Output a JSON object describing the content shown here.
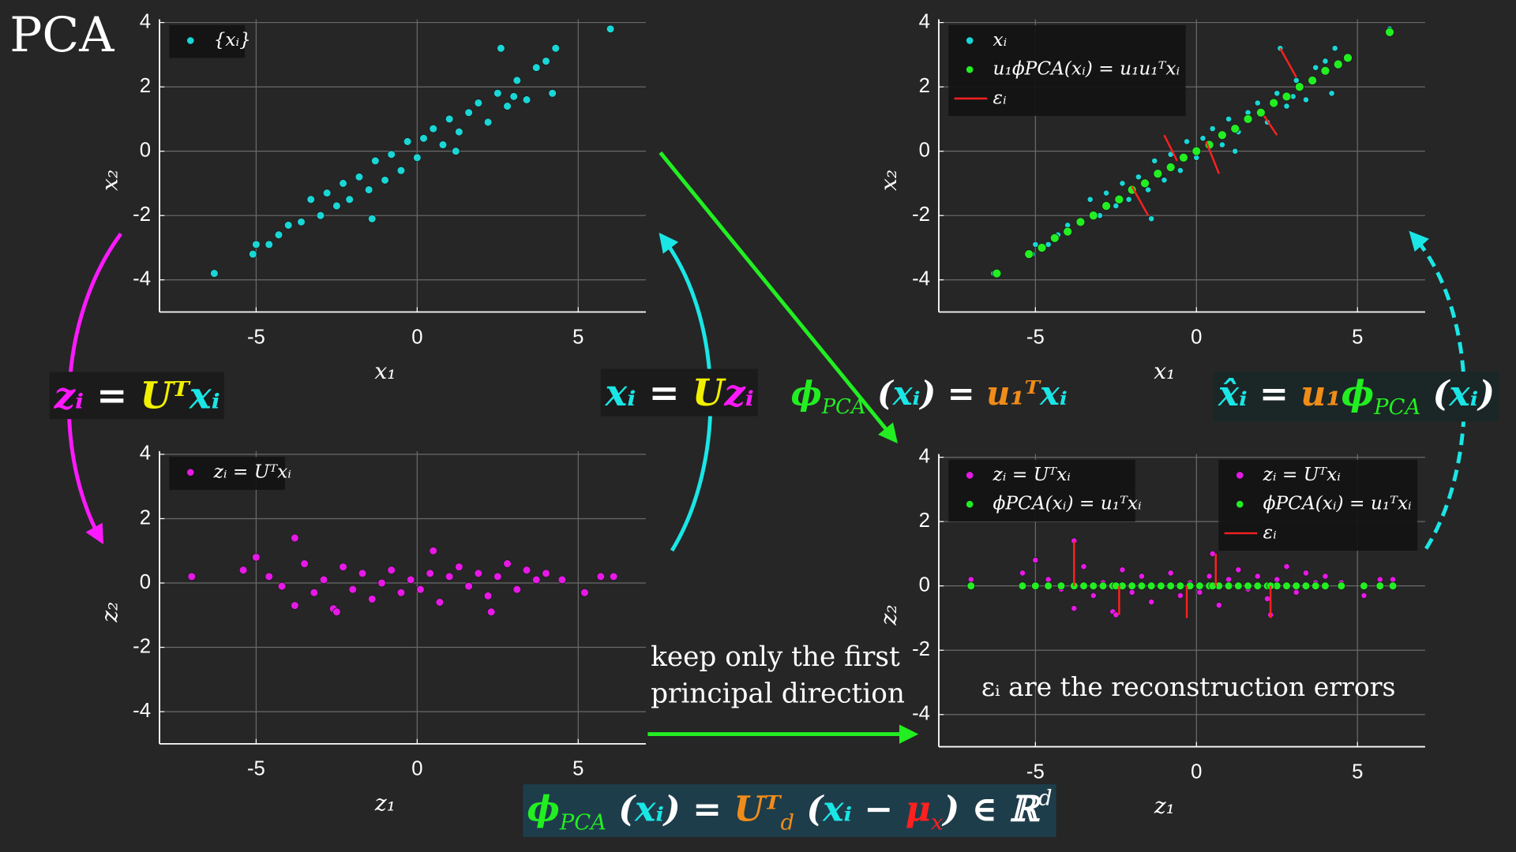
{
  "title": "PCA",
  "chart_data": [
    {
      "type": "scatter",
      "xlabel": "x₁",
      "ylabel": "x₂",
      "xlim": [
        -8,
        7.1
      ],
      "ylim": [
        -5,
        4.1
      ],
      "xticks": [
        -5,
        0,
        5
      ],
      "yticks": [
        -4,
        -2,
        0,
        2,
        4
      ],
      "grid": true,
      "legends": [
        {
          "loc": "upper left",
          "entries": [
            0
          ]
        }
      ],
      "series": [
        {
          "name": "{xᵢ}",
          "color": "#1ad6d6",
          "marker_size": 4,
          "x": [
            -6.3,
            -5.1,
            -5.0,
            -4.6,
            -4.3,
            -4.0,
            -3.6,
            -3.3,
            -3.0,
            -2.8,
            -2.5,
            -2.3,
            -2.1,
            -1.8,
            -1.5,
            -1.3,
            -1.0,
            -0.8,
            -0.5,
            -0.3,
            0.0,
            0.2,
            0.5,
            0.8,
            1.0,
            1.3,
            1.6,
            1.9,
            2.2,
            2.5,
            2.8,
            3.1,
            3.4,
            3.7,
            4.0,
            4.3,
            2.6,
            1.2,
            -1.4,
            6.0,
            4.2,
            3.0
          ],
          "values": [
            -3.8,
            -3.2,
            -2.9,
            -2.9,
            -2.6,
            -2.3,
            -2.2,
            -1.5,
            -2.0,
            -1.3,
            -1.7,
            -1.0,
            -1.5,
            -0.8,
            -1.2,
            -0.3,
            -0.9,
            -0.1,
            -0.6,
            0.3,
            -0.2,
            0.4,
            0.7,
            0.2,
            1.0,
            0.6,
            1.2,
            1.5,
            0.9,
            1.8,
            1.4,
            2.2,
            1.6,
            2.6,
            2.8,
            3.2,
            3.2,
            0.0,
            -2.1,
            3.8,
            1.8,
            1.7
          ]
        }
      ]
    },
    {
      "type": "scatter",
      "xlabel": "x₁",
      "ylabel": "x₂",
      "xlim": [
        -8,
        7.1
      ],
      "ylim": [
        -5,
        4.1
      ],
      "xticks": [
        -5,
        0,
        5
      ],
      "yticks": [
        -4,
        -2,
        0,
        2,
        4
      ],
      "grid": true,
      "legends": [
        {
          "loc": "upper left",
          "entries": [
            0,
            1,
            2
          ]
        }
      ],
      "series": [
        {
          "name": "xᵢ",
          "color": "#1ad6d6",
          "marker_size": 3,
          "x": [
            -6.3,
            -5.1,
            -5.0,
            -4.6,
            -4.3,
            -4.0,
            -3.6,
            -3.3,
            -3.0,
            -2.8,
            -2.5,
            -2.3,
            -2.1,
            -1.8,
            -1.5,
            -1.3,
            -1.0,
            -0.8,
            -0.5,
            -0.3,
            0.0,
            0.2,
            0.5,
            0.8,
            1.0,
            1.3,
            1.6,
            1.9,
            2.2,
            2.5,
            2.8,
            3.1,
            3.4,
            3.7,
            4.0,
            4.3,
            2.6,
            1.2,
            -1.4,
            6.0,
            4.2,
            3.0
          ],
          "values": [
            -3.8,
            -3.2,
            -2.9,
            -2.9,
            -2.6,
            -2.3,
            -2.2,
            -1.5,
            -2.0,
            -1.3,
            -1.7,
            -1.0,
            -1.5,
            -0.8,
            -1.2,
            -0.3,
            -0.9,
            -0.1,
            -0.6,
            0.3,
            -0.2,
            0.4,
            0.7,
            0.2,
            1.0,
            0.6,
            1.2,
            1.5,
            0.9,
            1.8,
            1.4,
            2.2,
            1.6,
            2.6,
            2.8,
            3.2,
            3.2,
            0.0,
            -2.1,
            3.8,
            1.8,
            1.7
          ]
        },
        {
          "name": "u₁ϕPCA(xᵢ) = u₁u₁ᵀxᵢ",
          "color": "#22ee22",
          "marker_size": 4.5,
          "x": [
            -6.2,
            -5.2,
            -4.8,
            -4.4,
            -4.0,
            -3.6,
            -3.2,
            -2.8,
            -2.4,
            -2.0,
            -1.6,
            -1.2,
            -0.8,
            -0.4,
            0.0,
            0.4,
            0.8,
            1.2,
            1.6,
            2.0,
            2.4,
            2.8,
            3.2,
            3.6,
            4.0,
            4.4,
            4.7,
            6.0
          ],
          "values": [
            -3.8,
            -3.2,
            -3.0,
            -2.7,
            -2.5,
            -2.2,
            -2.0,
            -1.7,
            -1.5,
            -1.2,
            -1.0,
            -0.7,
            -0.5,
            -0.2,
            0.0,
            0.2,
            0.5,
            0.7,
            1.0,
            1.2,
            1.5,
            1.7,
            2.0,
            2.2,
            2.5,
            2.7,
            2.9,
            3.7
          ]
        },
        {
          "name": "εᵢ",
          "color": "#ff2020",
          "marker": "line",
          "x": [
            2.6,
            2.1,
            -1.0,
            0.3,
            -2.0
          ],
          "values": [
            3.2,
            1.1,
            0.5,
            0.3,
            -1.1
          ],
          "x2": [
            3.1,
            2.5,
            -0.6,
            0.7,
            -1.5
          ],
          "values2": [
            2.3,
            0.5,
            -0.3,
            -0.7,
            -2.0
          ]
        }
      ]
    },
    {
      "type": "scatter",
      "xlabel": "z₁",
      "ylabel": "z₂",
      "xlim": [
        -8,
        7.1
      ],
      "ylim": [
        -5,
        4.1
      ],
      "xticks": [
        -5,
        0,
        5
      ],
      "yticks": [
        -4,
        -2,
        0,
        2,
        4
      ],
      "grid": true,
      "legends": [
        {
          "loc": "upper left",
          "entries": [
            0
          ]
        }
      ],
      "series": [
        {
          "name": "zᵢ = Uᵀxᵢ",
          "color": "#e619e6",
          "marker_size": 4,
          "x": [
            -7.0,
            -5.4,
            -5.0,
            -4.6,
            -4.2,
            -3.8,
            -3.5,
            -3.2,
            -2.9,
            -2.6,
            -2.3,
            -2.0,
            -1.7,
            -1.4,
            -1.1,
            -0.8,
            -0.5,
            -0.2,
            0.1,
            0.4,
            0.7,
            1.0,
            1.3,
            1.6,
            1.9,
            2.2,
            2.5,
            2.8,
            3.1,
            3.4,
            3.7,
            4.0,
            4.5,
            5.2,
            5.7,
            6.1,
            -3.8,
            0.5,
            -2.5,
            2.3
          ],
          "values": [
            0.2,
            0.4,
            0.8,
            0.2,
            -0.1,
            1.4,
            0.6,
            -0.3,
            0.1,
            -0.8,
            0.5,
            -0.2,
            0.3,
            -0.5,
            0.0,
            0.4,
            -0.3,
            0.1,
            -0.2,
            0.3,
            -0.6,
            0.2,
            0.5,
            -0.1,
            0.3,
            -0.4,
            0.2,
            0.6,
            -0.2,
            0.4,
            0.1,
            0.3,
            0.1,
            -0.3,
            0.2,
            0.2,
            -0.7,
            1.0,
            -0.9,
            -0.9
          ]
        }
      ]
    },
    {
      "type": "scatter",
      "xlabel": "z₁",
      "ylabel": "z₂",
      "xlim": [
        -8,
        7.1
      ],
      "ylim": [
        -5,
        4.1
      ],
      "xticks": [
        -5,
        0,
        5
      ],
      "yticks": [
        -4,
        -2,
        0,
        2,
        4
      ],
      "grid": true,
      "legends": [
        {
          "loc": "upper left",
          "entries": [
            0,
            1
          ]
        },
        {
          "loc": "upper right",
          "entries": [
            0,
            1,
            2
          ]
        }
      ],
      "series": [
        {
          "name": "zᵢ = Uᵀxᵢ",
          "color": "#e619e6",
          "marker_size": 3,
          "x": [
            -7.0,
            -5.4,
            -5.0,
            -4.6,
            -4.2,
            -3.8,
            -3.5,
            -3.2,
            -2.9,
            -2.6,
            -2.3,
            -2.0,
            -1.7,
            -1.4,
            -1.1,
            -0.8,
            -0.5,
            -0.2,
            0.1,
            0.4,
            0.7,
            1.0,
            1.3,
            1.6,
            1.9,
            2.2,
            2.5,
            2.8,
            3.1,
            3.4,
            3.7,
            4.0,
            4.5,
            5.2,
            5.7,
            6.1,
            -3.8,
            0.5,
            -2.5,
            2.3
          ],
          "values": [
            0.2,
            0.4,
            0.8,
            0.2,
            -0.1,
            1.4,
            0.6,
            -0.3,
            0.1,
            -0.8,
            0.5,
            -0.2,
            0.3,
            -0.5,
            0.0,
            0.4,
            -0.3,
            0.1,
            -0.2,
            0.3,
            -0.6,
            0.2,
            0.5,
            -0.1,
            0.3,
            -0.4,
            0.2,
            0.6,
            -0.2,
            0.4,
            0.1,
            0.3,
            0.1,
            -0.3,
            0.2,
            0.2,
            -0.7,
            1.0,
            -0.9,
            -0.9
          ]
        },
        {
          "name": "ϕPCA(xᵢ) = u₁ᵀxᵢ",
          "color": "#22ee22",
          "marker_size": 4,
          "x": [
            -7.0,
            -5.4,
            -5.0,
            -4.6,
            -4.2,
            -3.8,
            -3.5,
            -3.2,
            -2.9,
            -2.6,
            -2.3,
            -2.0,
            -1.7,
            -1.4,
            -1.1,
            -0.8,
            -0.5,
            -0.2,
            0.1,
            0.4,
            0.7,
            1.0,
            1.3,
            1.6,
            1.9,
            2.2,
            2.5,
            2.8,
            3.1,
            3.4,
            3.7,
            4.0,
            4.5,
            5.2,
            5.7,
            6.1,
            -3.8,
            0.5,
            -2.5,
            2.3
          ],
          "values": [
            0,
            0,
            0,
            0,
            0,
            0,
            0,
            0,
            0,
            0,
            0,
            0,
            0,
            0,
            0,
            0,
            0,
            0,
            0,
            0,
            0,
            0,
            0,
            0,
            0,
            0,
            0,
            0,
            0,
            0,
            0,
            0,
            0,
            0,
            0,
            0,
            0,
            0,
            0,
            0
          ]
        },
        {
          "name": "εᵢ",
          "color": "#ff2020",
          "marker": "line",
          "x": [
            -3.8,
            -2.4,
            -0.3,
            0.6,
            2.3
          ],
          "values": [
            1.4,
            -0.9,
            -1.0,
            1.0,
            -1.0
          ],
          "x2": [
            -3.8,
            -2.4,
            -0.3,
            0.6,
            2.3
          ],
          "values2": [
            0,
            0,
            0,
            0,
            0
          ]
        }
      ]
    }
  ],
  "annotations": [
    {
      "background": "#1b1b1b",
      "parts": [
        {
          "text": "zᵢ",
          "color": "#ff19ff"
        },
        {
          "text": " = ",
          "color": "#ffffff"
        },
        {
          "text": "Uᵀ",
          "color": "#f0f000"
        },
        {
          "text": "xᵢ",
          "color": "#1ae6e6"
        }
      ]
    },
    {
      "background": "#1b1b1b",
      "parts": [
        {
          "text": "xᵢ",
          "color": "#1ae6e6"
        },
        {
          "text": " = ",
          "color": "#ffffff"
        },
        {
          "text": "U",
          "color": "#f0f000"
        },
        {
          "text": "zᵢ",
          "color": "#ff19ff"
        }
      ]
    },
    {
      "parts": [
        {
          "text": "ϕ",
          "color": "#22ee22"
        },
        {
          "text": "PCA",
          "color": "#22ee22",
          "sub": true
        },
        {
          "text": " (",
          "color": "#ffffff"
        },
        {
          "text": "xᵢ",
          "color": "#1ae6e6"
        },
        {
          "text": ") = ",
          "color": "#ffffff"
        },
        {
          "text": "u₁ᵀ",
          "color": "#f08c1a"
        },
        {
          "text": "xᵢ",
          "color": "#1ae6e6"
        }
      ]
    },
    {
      "background": "#1b2626",
      "parts": [
        {
          "text": "x̂ᵢ",
          "color": "#1ae6e6"
        },
        {
          "text": " = ",
          "color": "#ffffff"
        },
        {
          "text": "u₁",
          "color": "#f08c1a"
        },
        {
          "text": "ϕ",
          "color": "#22ee22"
        },
        {
          "text": "PCA",
          "color": "#22ee22",
          "sub": true
        },
        {
          "text": " (",
          "color": "#ffffff"
        },
        {
          "text": "xᵢ",
          "color": "#1ae6e6"
        },
        {
          "text": ")",
          "color": "#ffffff"
        }
      ]
    },
    {
      "background": "#1e3d4a",
      "parts": [
        {
          "text": "ϕ",
          "color": "#22ee22"
        },
        {
          "text": "PCA",
          "color": "#22ee22",
          "sub": true
        },
        {
          "text": " (",
          "color": "#ffffff"
        },
        {
          "text": "xᵢ",
          "color": "#1ae6e6"
        },
        {
          "text": ") = ",
          "color": "#ffffff"
        },
        {
          "text": "Uᵀ",
          "color": "#f08c1a"
        },
        {
          "text": "d",
          "color": "#f08c1a",
          "sub": true
        },
        {
          "text": " (",
          "color": "#ffffff"
        },
        {
          "text": "xᵢ",
          "color": "#1ae6e6"
        },
        {
          "text": " − ",
          "color": "#ffffff"
        },
        {
          "text": "μ",
          "color": "#ff2020"
        },
        {
          "text": "x",
          "color": "#ff2020",
          "sub": true
        },
        {
          "text": ") ∈ ℝ",
          "color": "#ffffff"
        },
        {
          "text": "d",
          "color": "#ffffff",
          "sup": true
        }
      ]
    }
  ],
  "notes": [
    {
      "color": "#22ee22",
      "lines": [
        "keep only the first",
        "principal direction"
      ]
    },
    {
      "color": "#eeee00",
      "lines": [
        "εᵢ are the reconstruction errors"
      ]
    }
  ]
}
